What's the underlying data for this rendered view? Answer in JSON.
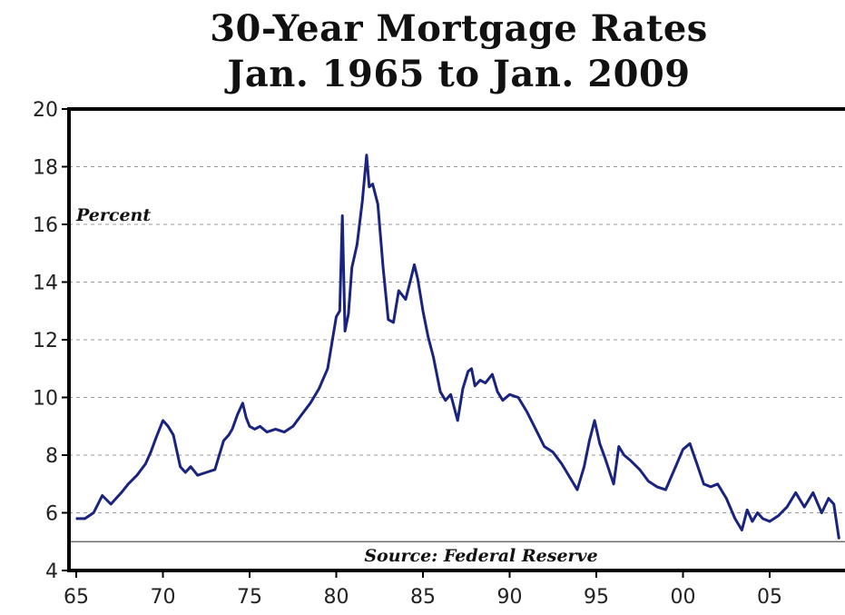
{
  "chart_data": {
    "type": "line",
    "title": "30-Year Mortgage Rates",
    "subtitle": "Jan. 1965 to Jan. 2009",
    "ylabel": "Percent",
    "source": "Source: Federal Reserve",
    "xlim": [
      1965,
      2009
    ],
    "ylim": [
      4,
      20
    ],
    "x_ticks": [
      1965,
      1970,
      1975,
      1980,
      1985,
      1990,
      1995,
      2000,
      2005
    ],
    "x_tick_labels": [
      "65",
      "70",
      "75",
      "80",
      "85",
      "90",
      "95",
      "00",
      "05"
    ],
    "y_ticks": [
      4,
      6,
      8,
      10,
      12,
      14,
      16,
      18,
      20
    ],
    "y_tick_labels": [
      "4",
      "6",
      "8",
      "10",
      "12",
      "14",
      "16",
      "18",
      "20"
    ],
    "grid": "horizontal dashed",
    "reference_line": 5,
    "color": "#1a237e",
    "series": [
      {
        "x": [
          1965.0,
          1965.5,
          1966.0,
          1966.5,
          1967.0,
          1967.3,
          1967.6,
          1968.0,
          1968.5,
          1969.0,
          1969.3,
          1969.6,
          1970.0,
          1970.3,
          1970.6,
          1971.0,
          1971.3,
          1971.6,
          1972.0,
          1972.5,
          1973.0,
          1973.5,
          1973.8,
          1974.0,
          1974.3,
          1974.6,
          1974.8,
          1975.0,
          1975.3,
          1975.6,
          1976.0,
          1976.5,
          1977.0,
          1977.5,
          1978.0,
          1978.5,
          1979.0,
          1979.5,
          1980.0,
          1980.2,
          1980.35,
          1980.5,
          1980.7,
          1980.9,
          1981.2,
          1981.5,
          1981.75,
          1981.9,
          1982.1,
          1982.4,
          1982.7,
          1983.0,
          1983.3,
          1983.6,
          1984.0,
          1984.3,
          1984.5,
          1984.7,
          1985.0,
          1985.3,
          1985.6,
          1986.0,
          1986.3,
          1986.6,
          1987.0,
          1987.3,
          1987.6,
          1987.8,
          1988.0,
          1988.3,
          1988.6,
          1989.0,
          1989.3,
          1989.6,
          1990.0,
          1990.5,
          1991.0,
          1991.5,
          1992.0,
          1992.5,
          1993.0,
          1993.5,
          1993.9,
          1994.3,
          1994.6,
          1994.9,
          1995.2,
          1995.5,
          1996.0,
          1996.3,
          1996.6,
          1997.0,
          1997.5,
          1998.0,
          1998.5,
          1999.0,
          1999.5,
          2000.0,
          2000.4,
          2000.8,
          2001.2,
          2001.6,
          2002.0,
          2002.5,
          2003.0,
          2003.4,
          2003.7,
          2004.0,
          2004.3,
          2004.6,
          2005.0,
          2005.5,
          2006.0,
          2006.5,
          2007.0,
          2007.5,
          2008.0,
          2008.4,
          2008.7,
          2009.0
        ],
        "y": [
          5.8,
          5.8,
          6.0,
          6.6,
          6.3,
          6.5,
          6.7,
          7.0,
          7.3,
          7.7,
          8.1,
          8.6,
          9.2,
          9.0,
          8.7,
          7.6,
          7.4,
          7.6,
          7.3,
          7.4,
          7.5,
          8.5,
          8.7,
          8.9,
          9.4,
          9.8,
          9.3,
          9.0,
          8.9,
          9.0,
          8.8,
          8.9,
          8.8,
          9.0,
          9.4,
          9.8,
          10.3,
          11.0,
          12.8,
          13.0,
          16.3,
          12.3,
          12.9,
          14.5,
          15.3,
          16.8,
          18.4,
          17.3,
          17.4,
          16.7,
          14.5,
          12.7,
          12.6,
          13.7,
          13.4,
          14.1,
          14.6,
          14.1,
          13.0,
          12.1,
          11.4,
          10.2,
          9.9,
          10.1,
          9.2,
          10.3,
          10.9,
          11.0,
          10.4,
          10.6,
          10.5,
          10.8,
          10.2,
          9.9,
          10.1,
          10.0,
          9.5,
          8.9,
          8.3,
          8.1,
          7.7,
          7.2,
          6.8,
          7.6,
          8.5,
          9.2,
          8.4,
          7.9,
          7.0,
          8.3,
          8.0,
          7.8,
          7.5,
          7.1,
          6.9,
          6.8,
          7.5,
          8.2,
          8.4,
          7.7,
          7.0,
          6.9,
          7.0,
          6.5,
          5.8,
          5.4,
          6.1,
          5.7,
          6.0,
          5.8,
          5.7,
          5.9,
          6.2,
          6.7,
          6.2,
          6.7,
          6.0,
          6.5,
          6.3,
          5.1
        ]
      }
    ]
  }
}
